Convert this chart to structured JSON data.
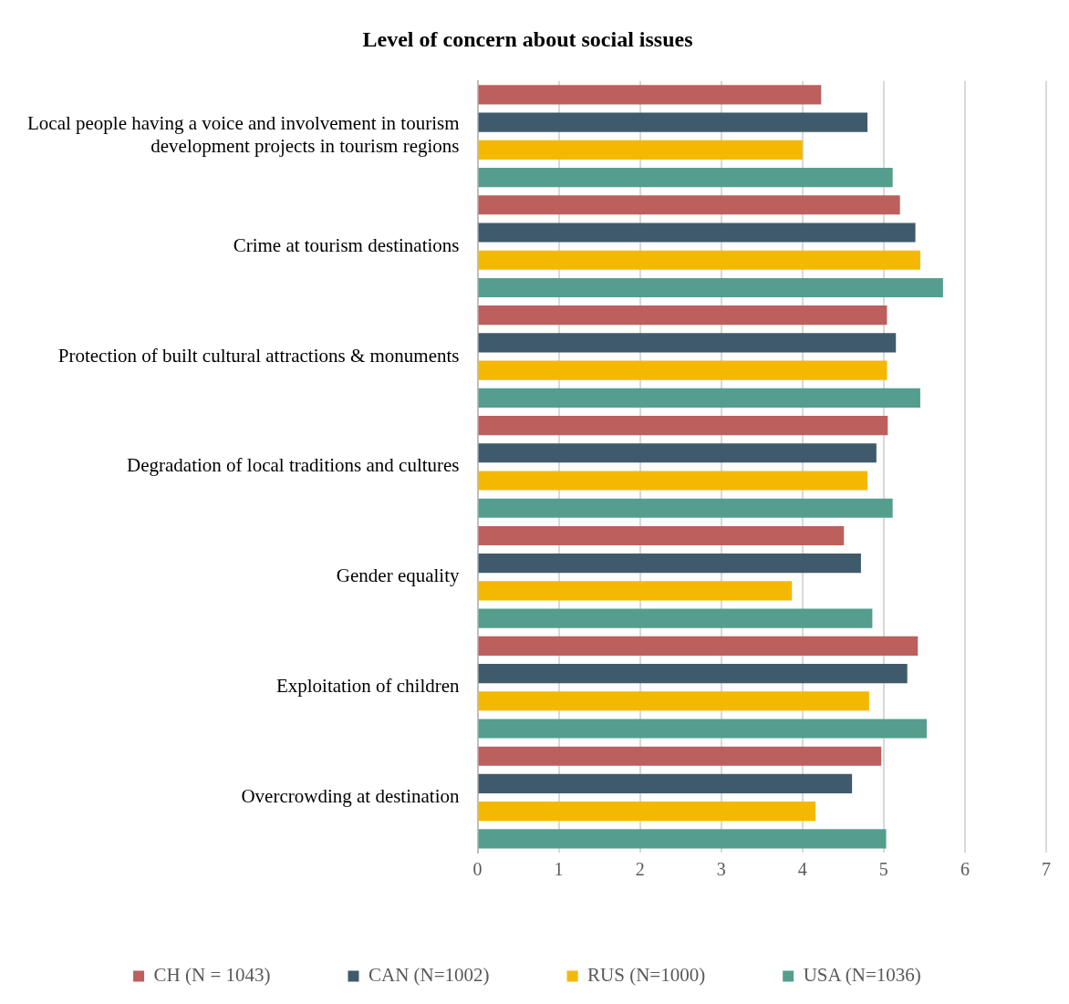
{
  "chart_data": {
    "type": "bar",
    "orientation": "horizontal",
    "title": "Level of concern about social issues",
    "categories": [
      "Local people having a voice and involvement in tourism development projects in tourism regions",
      "Crime at tourism destinations",
      "Protection of built cultural attractions & monuments",
      "Degradation of local traditions and cultures",
      "Gender equality",
      "Exploitation of children",
      "Overcrowding at destination"
    ],
    "series": [
      {
        "name": "CH (N = 1043)",
        "color": "#bc5f5d",
        "values": [
          4.23,
          5.2,
          5.04,
          5.05,
          4.51,
          5.42,
          4.97
        ]
      },
      {
        "name": "CAN (N=1002)",
        "color": "#3f5b6b",
        "values": [
          4.8,
          5.39,
          5.15,
          4.91,
          4.72,
          5.29,
          4.61
        ]
      },
      {
        "name": "RUS (N=1000)",
        "color": "#f5b800",
        "values": [
          4.0,
          5.45,
          5.04,
          4.8,
          3.87,
          4.82,
          4.16
        ]
      },
      {
        "name": "USA (N=1036)",
        "color": "#559e8e",
        "values": [
          5.11,
          5.73,
          5.45,
          5.11,
          4.86,
          5.53,
          5.03
        ]
      }
    ],
    "xlim": [
      0,
      7
    ],
    "xticks": [
      0,
      1,
      2,
      3,
      4,
      5,
      6,
      7
    ],
    "grid": "x",
    "legend": "bottom"
  }
}
